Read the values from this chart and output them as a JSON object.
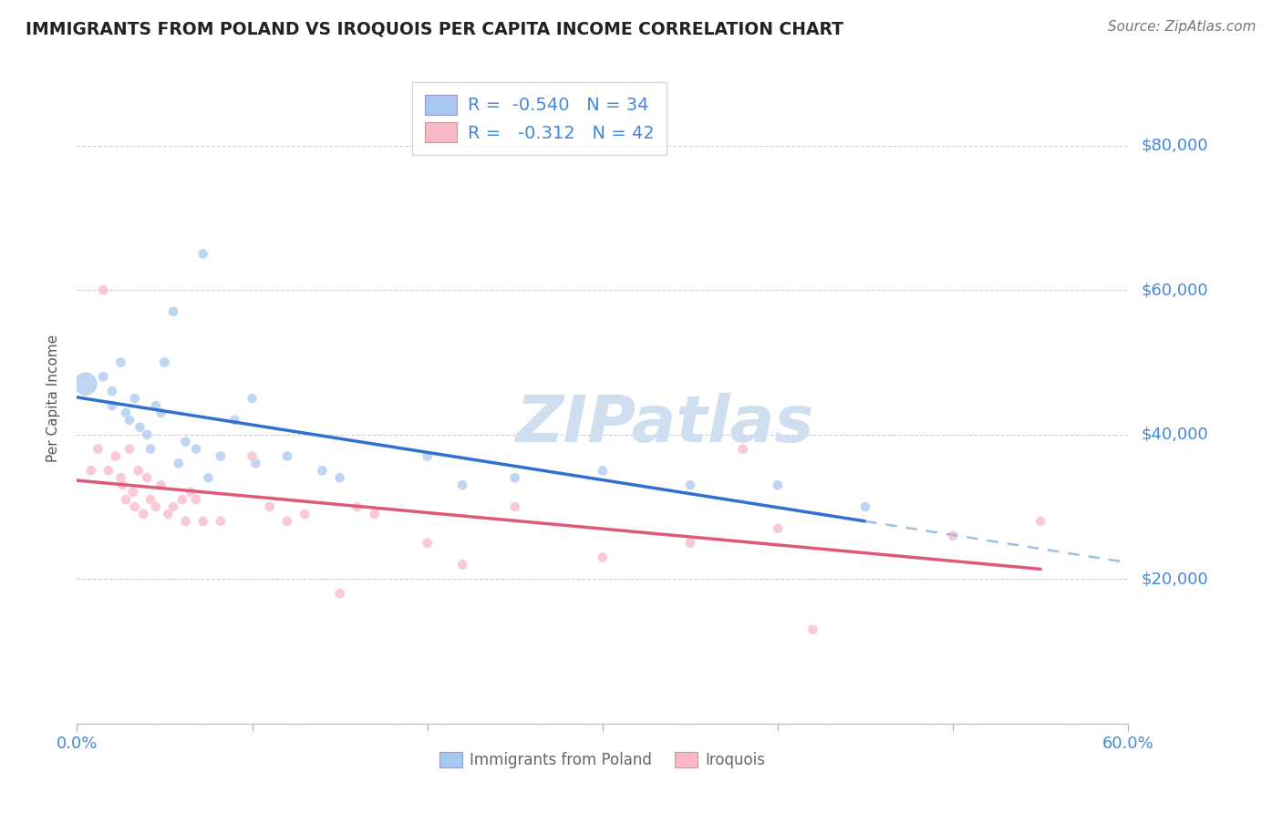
{
  "title": "IMMIGRANTS FROM POLAND VS IROQUOIS PER CAPITA INCOME CORRELATION CHART",
  "source": "Source: ZipAtlas.com",
  "ylabel": "Per Capita Income",
  "xlim": [
    0.0,
    0.6
  ],
  "ylim": [
    0,
    90000
  ],
  "yticks": [
    0,
    20000,
    40000,
    60000,
    80000
  ],
  "ytick_labels": [
    "",
    "$20,000",
    "$40,000",
    "$60,000",
    "$80,000"
  ],
  "xticks": [
    0.0,
    0.1,
    0.2,
    0.3,
    0.4,
    0.5,
    0.6
  ],
  "xtick_labels": [
    "0.0%",
    "",
    "",
    "",
    "",
    "",
    "60.0%"
  ],
  "blue_R": -0.54,
  "blue_N": 34,
  "pink_R": -0.312,
  "pink_N": 42,
  "blue_color": "#a8c8f0",
  "pink_color": "#f8b8c8",
  "blue_line_color": "#3070d0",
  "pink_line_color": "#e05878",
  "dashed_line_color": "#a0c0e0",
  "background_color": "#ffffff",
  "grid_color": "#cccccc",
  "title_color": "#222222",
  "axis_label_color": "#555555",
  "tick_label_color": "#4488dd",
  "source_color": "#777777",
  "watermark_color": "#d0dff0",
  "legend_text_dark": "#333333",
  "legend_text_blue": "#4488dd",
  "blue_scatter_x": [
    0.005,
    0.015,
    0.02,
    0.02,
    0.025,
    0.028,
    0.03,
    0.033,
    0.036,
    0.04,
    0.042,
    0.045,
    0.048,
    0.05,
    0.055,
    0.058,
    0.062,
    0.068,
    0.072,
    0.075,
    0.082,
    0.09,
    0.1,
    0.102,
    0.12,
    0.14,
    0.15,
    0.2,
    0.22,
    0.25,
    0.3,
    0.35,
    0.4,
    0.45
  ],
  "blue_scatter_y": [
    47000,
    48000,
    46000,
    44000,
    50000,
    43000,
    42000,
    45000,
    41000,
    40000,
    38000,
    44000,
    43000,
    50000,
    57000,
    36000,
    39000,
    38000,
    65000,
    34000,
    37000,
    42000,
    45000,
    36000,
    37000,
    35000,
    34000,
    37000,
    33000,
    34000,
    35000,
    33000,
    33000,
    30000
  ],
  "pink_scatter_x": [
    0.008,
    0.012,
    0.015,
    0.018,
    0.022,
    0.025,
    0.026,
    0.028,
    0.03,
    0.032,
    0.033,
    0.035,
    0.038,
    0.04,
    0.042,
    0.045,
    0.048,
    0.052,
    0.055,
    0.06,
    0.062,
    0.065,
    0.068,
    0.072,
    0.082,
    0.1,
    0.11,
    0.12,
    0.13,
    0.15,
    0.16,
    0.17,
    0.2,
    0.22,
    0.25,
    0.3,
    0.35,
    0.38,
    0.4,
    0.42,
    0.5,
    0.55
  ],
  "pink_scatter_y": [
    35000,
    38000,
    60000,
    35000,
    37000,
    34000,
    33000,
    31000,
    38000,
    32000,
    30000,
    35000,
    29000,
    34000,
    31000,
    30000,
    33000,
    29000,
    30000,
    31000,
    28000,
    32000,
    31000,
    28000,
    28000,
    37000,
    30000,
    28000,
    29000,
    18000,
    30000,
    29000,
    25000,
    22000,
    30000,
    23000,
    25000,
    38000,
    27000,
    13000,
    26000,
    28000
  ],
  "legend_blue_label": "Immigrants from Poland",
  "legend_pink_label": "Iroquois"
}
